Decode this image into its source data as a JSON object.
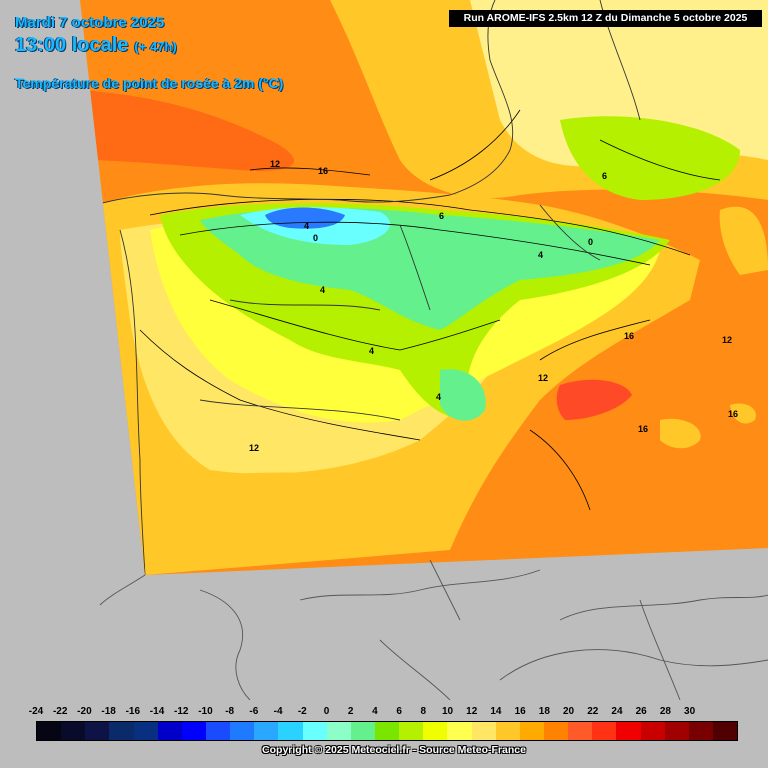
{
  "header": {
    "date": "Mardi 7 octobre 2025",
    "time": "13:00 locale",
    "lead": "(+ 47h)",
    "parameter": "Température de point de rosée à 2m (°C)"
  },
  "run_info": "Run AROME-IFS 2.5km 12 Z du Dimanche 5 octobre 2025",
  "copyright": "Copyright © 2025 Meteociel.fr - Source Meteo-France",
  "scale": {
    "labels": [
      "-24",
      "-22",
      "-20",
      "-18",
      "-16",
      "-14",
      "-12",
      "-10",
      "-8",
      "-6",
      "-4",
      "-2",
      "0",
      "2",
      "4",
      "6",
      "8",
      "10",
      "12",
      "14",
      "16",
      "18",
      "20",
      "22",
      "24",
      "26",
      "28",
      "30"
    ],
    "colors": [
      "#050514",
      "#0a0a2a",
      "#0d1445",
      "#0a2a6a",
      "#082f80",
      "#0000c8",
      "#0000ff",
      "#1a4bff",
      "#1e7aff",
      "#2aa8ff",
      "#2ad2ff",
      "#6affff",
      "#8cffc8",
      "#64f08c",
      "#7ae600",
      "#b4f000",
      "#f0ff00",
      "#ffff50",
      "#ffe664",
      "#ffc828",
      "#ffaa00",
      "#ff8200",
      "#ff5a28",
      "#ff3214",
      "#f00000",
      "#c80000",
      "#a00000",
      "#780000",
      "#500000"
    ]
  },
  "map": {
    "palette": {
      "sea_far": "#ff6a14",
      "sea": "#ff8c14",
      "land_warm": "#ffc828",
      "land_mid": "#ffe664",
      "land_pale": "#fff08c",
      "land_yellow": "#ffff3c",
      "green_light": "#b4f000",
      "green": "#64f08c",
      "cyan": "#6affff",
      "blue": "#2a7aff",
      "red_spot": "#ff4a28",
      "outside": "#bdbdbd"
    },
    "isoline_labels": [
      "12",
      "16",
      "4",
      "0",
      "6",
      "6",
      "0",
      "4",
      "4",
      "4",
      "4",
      "12",
      "16",
      "12",
      "16",
      "16",
      "12"
    ]
  }
}
